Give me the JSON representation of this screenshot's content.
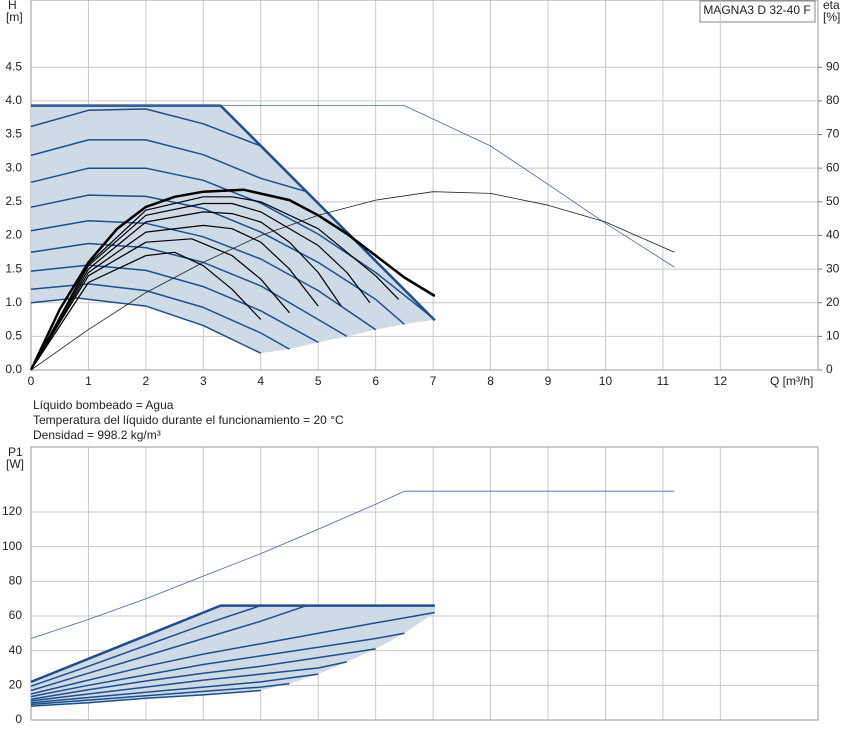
{
  "chart_data": [
    {
      "type": "line",
      "title": "MAGNA3 D 32-40 F",
      "ylabel": "H",
      "yunit": "[m]",
      "y2label": "eta",
      "y2unit": "[%]",
      "xlabel": "Q [m³/h]",
      "xlim": [
        0,
        13.7
      ],
      "xticks": [
        0,
        1,
        2,
        3,
        4,
        5,
        6,
        7,
        8,
        9,
        10,
        11,
        12
      ],
      "show_xtick_labels": true,
      "ylim": [
        0,
        5.5
      ],
      "yticks": [
        {
          "value": 0,
          "label": "0.0"
        },
        0.5,
        {
          "value": 1,
          "label": "1.0"
        },
        1.5,
        {
          "value": 2,
          "label": "2.0"
        },
        2.5,
        {
          "value": 3,
          "label": "3.0"
        },
        3.5,
        {
          "value": 4,
          "label": "4.0"
        },
        4.5
      ],
      "y2lim": [
        0,
        110
      ],
      "y2ticks": [
        0,
        10,
        20,
        30,
        40,
        50,
        60,
        70,
        80,
        90
      ],
      "grid": true,
      "series": [
        {
          "color": "#1f4e8c",
          "width": 2.5,
          "fill": "#cfdae7",
          "x": [
            0,
            3.3,
            7.03
          ],
          "values": [
            3.93,
            3.93,
            0.74
          ]
        },
        {
          "color": "#1f4e8c",
          "width": 1.5,
          "x": [
            0,
            1,
            2,
            3,
            4
          ],
          "values": [
            3.62,
            3.86,
            3.88,
            3.66,
            3.33
          ]
        },
        {
          "color": "#1f4e8c",
          "width": 1.5,
          "x": [
            0,
            1,
            2,
            3,
            4,
            4.8
          ],
          "values": [
            3.19,
            3.42,
            3.42,
            3.2,
            2.85,
            2.65
          ]
        },
        {
          "color": "#1f4e8c",
          "width": 1.5,
          "edge": true,
          "x": [
            0,
            1,
            2,
            3,
            4,
            5,
            6,
            7.03
          ],
          "values": [
            2.79,
            3.0,
            3.0,
            2.82,
            2.48,
            2.02,
            1.45,
            0.75
          ]
        },
        {
          "color": "#1f4e8c",
          "width": 1.5,
          "edge": true,
          "x": [
            0,
            1,
            2,
            3,
            4,
            5,
            6,
            6.5
          ],
          "values": [
            2.42,
            2.6,
            2.58,
            2.4,
            2.05,
            1.6,
            1.05,
            0.68
          ]
        },
        {
          "color": "#1f4e8c",
          "width": 1.5,
          "edge": true,
          "x": [
            0,
            1,
            2,
            3,
            4,
            5,
            6
          ],
          "values": [
            2.07,
            2.22,
            2.18,
            1.98,
            1.65,
            1.18,
            0.6
          ]
        },
        {
          "color": "#1f4e8c",
          "width": 1.5,
          "edge": true,
          "x": [
            0,
            1,
            2,
            3,
            4,
            5,
            5.5
          ],
          "values": [
            1.75,
            1.88,
            1.82,
            1.6,
            1.25,
            0.75,
            0.5
          ]
        },
        {
          "color": "#1f4e8c",
          "width": 1.5,
          "edge": true,
          "x": [
            0,
            1,
            2,
            3,
            4,
            5
          ],
          "values": [
            1.47,
            1.56,
            1.48,
            1.24,
            0.88,
            0.41
          ]
        },
        {
          "color": "#1f4e8c",
          "width": 1.5,
          "edge": true,
          "x": [
            0,
            1,
            2,
            3,
            4,
            4.5
          ],
          "values": [
            1.2,
            1.28,
            1.18,
            0.93,
            0.55,
            0.31
          ]
        },
        {
          "color": "#1f4e8c",
          "width": 1.5,
          "edge": true,
          "x": [
            0,
            0.8,
            2,
            3,
            4
          ],
          "values": [
            1.0,
            1.07,
            0.95,
            0.66,
            0.25
          ]
        },
        {
          "color": "#4a64a0",
          "width": 0.8,
          "x": [
            0,
            6.5,
            8,
            9,
            10,
            11.2
          ],
          "values": [
            3.93,
            3.93,
            3.33,
            2.76,
            2.18,
            1.53
          ]
        },
        {
          "color": "#222222",
          "width": 0.8,
          "axis": "y2",
          "x": [
            0,
            1,
            2,
            3,
            4,
            5,
            6,
            7,
            8,
            9,
            10,
            11.2
          ],
          "values": [
            0,
            12,
            23,
            32,
            40,
            46,
            50.5,
            53,
            52.5,
            49,
            44,
            35
          ]
        },
        {
          "color": "#000000",
          "width": 1.2,
          "axis": "y2",
          "x": [
            0,
            1,
            2,
            2.5,
            3,
            3.5,
            4
          ],
          "values": [
            0,
            26,
            34,
            35,
            31,
            24,
            15
          ]
        },
        {
          "color": "#000000",
          "width": 1.2,
          "axis": "y2",
          "x": [
            0,
            1,
            2,
            2.8,
            3.5,
            4,
            4.5
          ],
          "values": [
            0,
            28,
            38,
            39,
            34,
            27,
            17
          ]
        },
        {
          "color": "#000000",
          "width": 1.2,
          "axis": "y2",
          "x": [
            0,
            1,
            2,
            3,
            3.5,
            4,
            4.5,
            5
          ],
          "values": [
            0,
            29,
            41,
            43,
            42,
            38,
            30,
            19
          ]
        },
        {
          "color": "#000000",
          "width": 1.2,
          "axis": "y2",
          "x": [
            0,
            1,
            2,
            3,
            3.5,
            4,
            4.5,
            5,
            5.4
          ],
          "values": [
            0,
            30,
            44,
            47,
            46.5,
            44,
            38,
            29,
            19
          ]
        },
        {
          "color": "#000000",
          "width": 1.2,
          "axis": "y2",
          "x": [
            0,
            1,
            2,
            3,
            3.5,
            4,
            5,
            5.5,
            5.9
          ],
          "values": [
            0,
            31,
            46,
            49.5,
            49.5,
            47,
            37,
            29,
            20
          ]
        },
        {
          "color": "#000000",
          "width": 1.2,
          "axis": "y2",
          "x": [
            0,
            1,
            2,
            3,
            3.5,
            4,
            5,
            6,
            6.4
          ],
          "values": [
            0,
            31.5,
            47.5,
            51.5,
            51.5,
            50,
            42,
            28,
            21
          ]
        },
        {
          "color": "#000000",
          "width": 2.5,
          "axis": "y2",
          "x": [
            0,
            0.5,
            1,
            1.5,
            2,
            2.5,
            3,
            3.7,
            4.5,
            5,
            5.5,
            6,
            6.5,
            7.03
          ],
          "values": [
            0,
            18,
            32,
            42,
            48.5,
            51.5,
            53,
            53.6,
            50.5,
            46,
            40.5,
            34,
            27.5,
            22
          ]
        }
      ],
      "notes": [
        "Líquido bombeado = Agua",
        "Temperatura del líquido durante el funcionamiento = 20 °C",
        "Densidad = 998.2 kg/m³"
      ]
    },
    {
      "type": "line",
      "ylabel": "P1",
      "yunit": "[W]",
      "xlim": [
        0,
        13.7
      ],
      "xticks": [
        0,
        1,
        2,
        3,
        4,
        5,
        6,
        7,
        8,
        9,
        10,
        11,
        12
      ],
      "show_xtick_labels": false,
      "ylim": [
        0,
        157.5
      ],
      "yticks": [
        0,
        20,
        40,
        60,
        80,
        100,
        120
      ],
      "grid": true,
      "series": [
        {
          "color": "#1f4e8c",
          "width": 2.5,
          "fill": "#cfdae7",
          "x": [
            0,
            3.3,
            7.03
          ],
          "values": [
            22,
            66,
            66
          ]
        },
        {
          "color": "#1f4e8c",
          "width": 1.5,
          "x": [
            0,
            1,
            2,
            3,
            4
          ],
          "values": [
            19.5,
            31,
            43,
            55,
            66
          ]
        },
        {
          "color": "#1f4e8c",
          "width": 1.5,
          "x": [
            0,
            1,
            2,
            3,
            4,
            4.8
          ],
          "values": [
            17,
            27,
            37,
            47,
            57,
            66
          ]
        },
        {
          "color": "#1f4e8c",
          "width": 1.5,
          "edge": true,
          "x": [
            0,
            1,
            2,
            3,
            4,
            5,
            6,
            7.03
          ],
          "values": [
            15,
            23,
            31,
            38,
            44,
            50,
            56,
            62
          ]
        },
        {
          "color": "#1f4e8c",
          "width": 1.5,
          "edge": true,
          "x": [
            0,
            1,
            2,
            3,
            4,
            5,
            6,
            6.5
          ],
          "values": [
            13.5,
            20,
            26,
            32,
            37,
            42,
            47,
            50
          ]
        },
        {
          "color": "#1f4e8c",
          "width": 1.5,
          "edge": true,
          "x": [
            0,
            1,
            2,
            3,
            4,
            5,
            6
          ],
          "values": [
            12,
            17.5,
            22.5,
            27,
            31,
            36,
            41
          ]
        },
        {
          "color": "#1f4e8c",
          "width": 1.5,
          "edge": true,
          "x": [
            0,
            1,
            2,
            3,
            4,
            5,
            5.5
          ],
          "values": [
            11,
            15,
            19,
            23,
            26.5,
            30,
            33.5
          ]
        },
        {
          "color": "#1f4e8c",
          "width": 1.5,
          "edge": true,
          "x": [
            0,
            1,
            2,
            3,
            4,
            5
          ],
          "values": [
            10,
            13,
            16,
            19,
            22,
            26.5
          ]
        },
        {
          "color": "#1f4e8c",
          "width": 1.5,
          "edge": true,
          "x": [
            0,
            1,
            2,
            3,
            4,
            4.5
          ],
          "values": [
            9,
            11.5,
            14,
            16.5,
            19,
            21
          ]
        },
        {
          "color": "#1f4e8c",
          "width": 1.5,
          "edge": true,
          "x": [
            0,
            1,
            2,
            3,
            4
          ],
          "values": [
            8,
            10,
            12.5,
            14.5,
            17
          ]
        },
        {
          "color": "#4a64a0",
          "width": 0.8,
          "x": [
            0,
            1,
            2,
            3,
            4,
            5,
            6,
            6.5,
            11.2
          ],
          "values": [
            47,
            58,
            70,
            83,
            96,
            110,
            124.5,
            132,
            132
          ]
        }
      ]
    }
  ]
}
